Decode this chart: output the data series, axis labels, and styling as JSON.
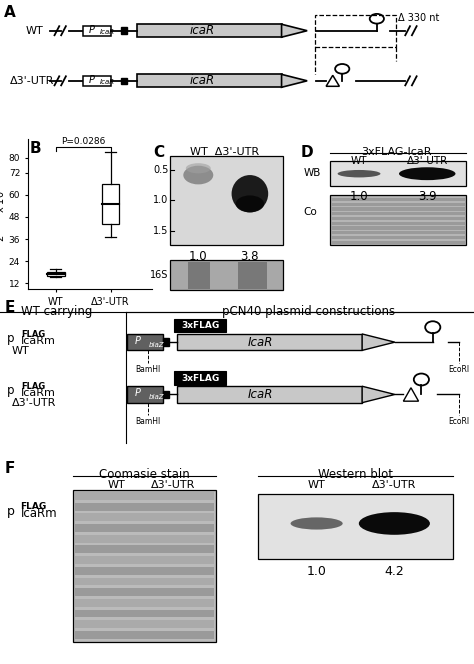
{
  "panel_A": {
    "wt_label": "WT",
    "delta_label": "Δ3'-UTR",
    "gene_label": "icaR",
    "promoter_label": "P",
    "promoter_subscript": "IcaR",
    "delta_nt": "Δ 330 nt"
  },
  "panel_B": {
    "label": "B",
    "p_value": "P=0.0286",
    "wt_box": {
      "q1": 16.2,
      "median": 17.0,
      "q3": 18.0,
      "whisker_low": 15.5,
      "whisker_high": 19.8
    },
    "delta_box": {
      "q1": 44,
      "median": 55,
      "q3": 66,
      "whisker_low": 37,
      "whisker_high": 83
    },
    "yticks": [
      12,
      24,
      36,
      48,
      60,
      72,
      80
    ],
    "xticks": [
      "WT",
      "Δ3'-UTR"
    ],
    "ylim": [
      9,
      90
    ]
  },
  "panel_C": {
    "label": "C",
    "yticks": [
      0.5,
      1.0,
      1.5
    ],
    "values_label": [
      "1.0",
      "3.8"
    ],
    "loading_label": "16S"
  },
  "panel_D": {
    "label": "D",
    "title": "3xFLAG-IcaR",
    "wb_label": "WB",
    "co_label": "Co",
    "values_label": [
      "1.0",
      "3.9"
    ]
  },
  "panel_E": {
    "label": "E",
    "left_title": "WT carrying",
    "right_title": "pCN40 plasmid constructions",
    "flag_label": "3xFLAG",
    "icaR_label": "IcaR",
    "bamhi_label": "BamHI",
    "ecori_label": "EcoRI"
  },
  "panel_F": {
    "label": "F",
    "left_title": "Coomasie stain",
    "right_title": "Western blot",
    "values_label": [
      "1.0",
      "4.2"
    ]
  },
  "colors": {
    "background": "#ffffff",
    "gene_fill": "#c8c8c8",
    "promoter_fill_dark": "#555555",
    "flag_fill": "#111111",
    "blot_bg_light": "#e0e0e0",
    "blot_bg_dark": "#b8b8b8",
    "band_light": "#888888",
    "band_dark": "#111111",
    "co_bg": "#b0b0b0"
  }
}
